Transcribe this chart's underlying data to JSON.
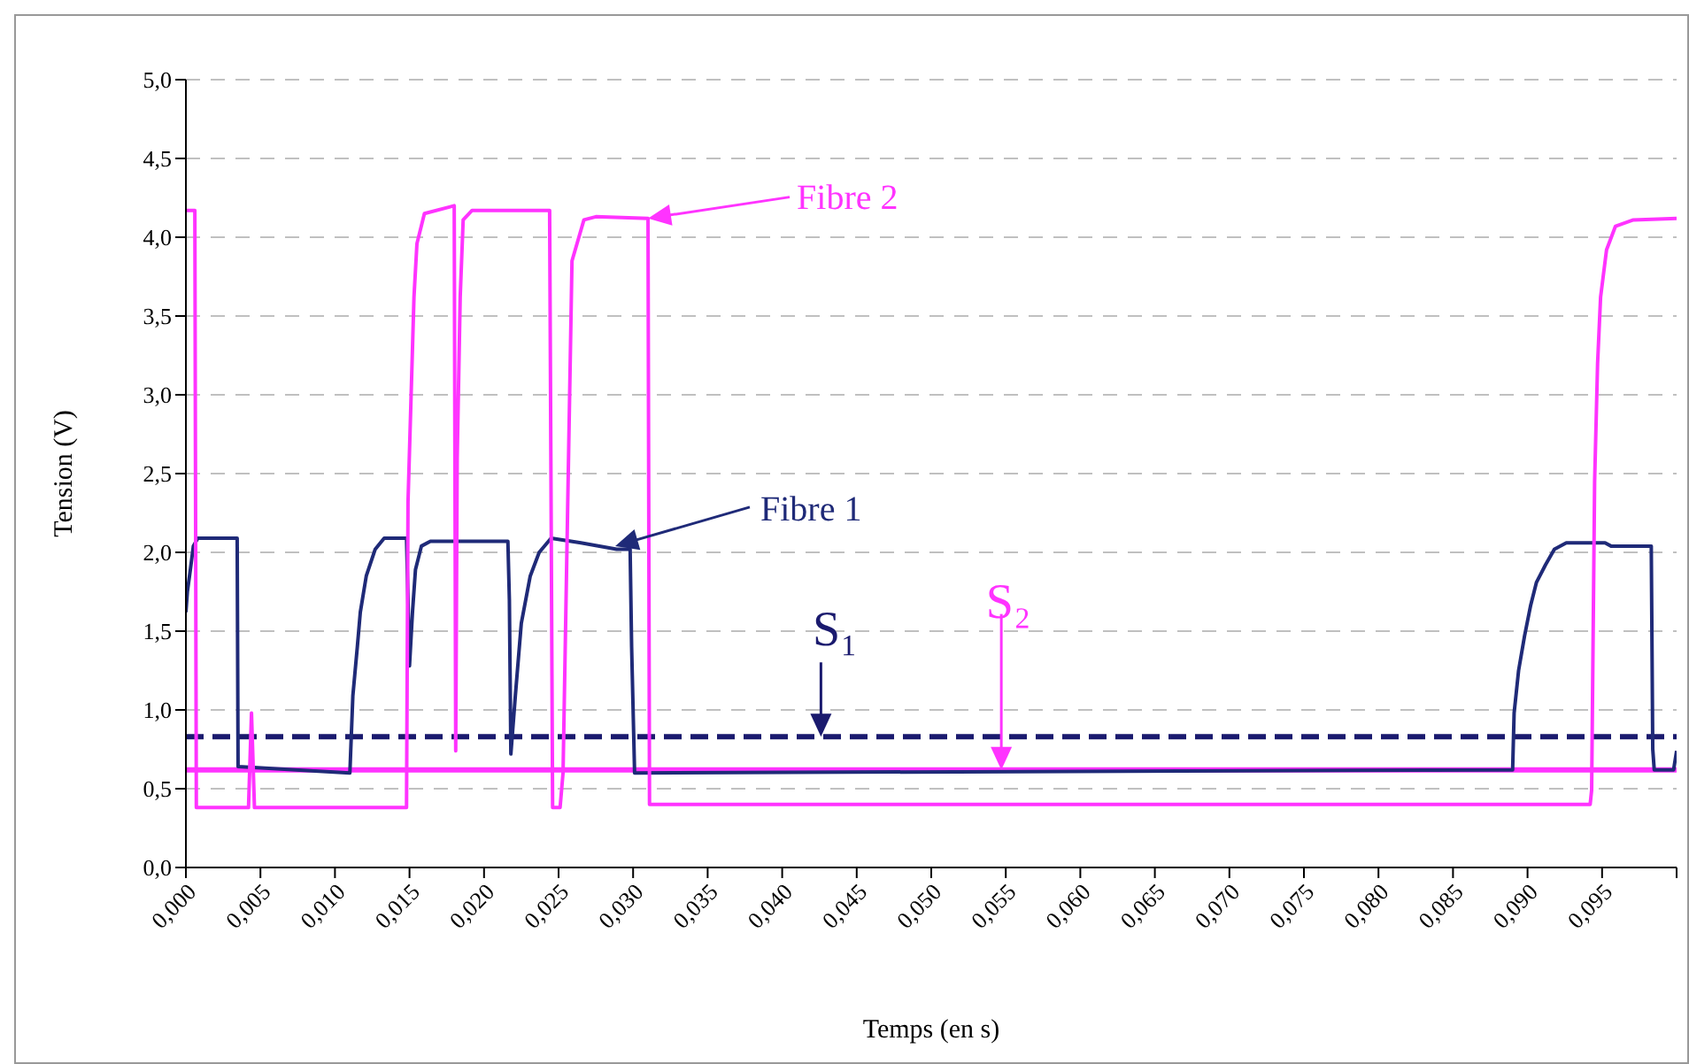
{
  "chart_data": {
    "type": "line",
    "xlabel": "Temps (en s)",
    "ylabel": "Tension (V)",
    "xlim": [
      0,
      0.1
    ],
    "xticks": [
      {
        "value": 0,
        "label": "0,000"
      },
      {
        "value": 0.005,
        "label": "0,005"
      },
      {
        "value": 0.01,
        "label": "0,010"
      },
      {
        "value": 0.015,
        "label": "0,015"
      },
      {
        "value": 0.02,
        "label": "0,020"
      },
      {
        "value": 0.025,
        "label": "0,025"
      },
      {
        "value": 0.03,
        "label": "0,030"
      },
      {
        "value": 0.035,
        "label": "0,035"
      },
      {
        "value": 0.04,
        "label": "0,040"
      },
      {
        "value": 0.045,
        "label": "0,045"
      },
      {
        "value": 0.05,
        "label": "0,050"
      },
      {
        "value": 0.055,
        "label": "0,055"
      },
      {
        "value": 0.06,
        "label": "0,060"
      },
      {
        "value": 0.065,
        "label": "0,065"
      },
      {
        "value": 0.07,
        "label": "0,070"
      },
      {
        "value": 0.075,
        "label": "0,075"
      },
      {
        "value": 0.08,
        "label": "0,080"
      },
      {
        "value": 0.085,
        "label": "0,085"
      },
      {
        "value": 0.09,
        "label": "0,090"
      },
      {
        "value": 0.095,
        "label": "0,095"
      },
      {
        "value": 0.1,
        "label": null
      }
    ],
    "ylim": [
      0,
      5
    ],
    "yticks": [
      {
        "value": 0,
        "label": "0,0"
      },
      {
        "value": 0.5,
        "label": "0,5"
      },
      {
        "value": 1,
        "label": "1,0"
      },
      {
        "value": 1.5,
        "label": "1,5"
      },
      {
        "value": 2,
        "label": "2,0"
      },
      {
        "value": 2.5,
        "label": "2,5"
      },
      {
        "value": 3,
        "label": "3,0"
      },
      {
        "value": 3.5,
        "label": "3,5"
      },
      {
        "value": 4,
        "label": "4,0"
      },
      {
        "value": 4.5,
        "label": "4,5"
      },
      {
        "value": 5,
        "label": "5,0"
      }
    ],
    "grid": "y",
    "marker": "none",
    "line_style": "solid",
    "series": [
      {
        "color": "#1f2a78",
        "x": [
          0,
          0.0001,
          0.0003,
          0.0005,
          0.0008,
          0.0032,
          0.00344,
          0.0035,
          0.011,
          0.0112,
          0.0115,
          0.0117,
          0.0121,
          0.0127,
          0.0133,
          0.0148,
          0.015,
          0.0152,
          0.0154,
          0.0158,
          0.0164,
          0.017,
          0.0216,
          0.0217,
          0.0218,
          0.0221,
          0.0225,
          0.0231,
          0.0237,
          0.0245,
          0.0265,
          0.0289,
          0.0298,
          0.0299,
          0.0301,
          0.089,
          0.0891,
          0.0894,
          0.0898,
          0.0902,
          0.0906,
          0.0912,
          0.0918,
          0.0926,
          0.0952,
          0.0956,
          0.0983,
          0.0984,
          0.0985,
          0.0998,
          0.1
        ],
        "values": [
          1.62,
          1.75,
          1.89,
          2.04,
          2.09,
          2.09,
          2.09,
          0.64,
          0.6,
          1.09,
          1.4,
          1.62,
          1.85,
          2.02,
          2.09,
          2.09,
          1.28,
          1.62,
          1.89,
          2.04,
          2.07,
          2.07,
          2.07,
          1.7,
          0.72,
          1.09,
          1.55,
          1.85,
          2.0,
          2.09,
          2.06,
          2.02,
          2.02,
          1.4,
          0.6,
          0.62,
          0.98,
          1.25,
          1.47,
          1.66,
          1.81,
          1.92,
          2.02,
          2.06,
          2.06,
          2.04,
          2.04,
          0.75,
          0.62,
          0.62,
          0.74
        ]
      },
      {
        "color": "#ff33ff",
        "x": [
          0,
          0.0006,
          0.0007,
          0.0042,
          0.0044,
          0.0046,
          0.0148,
          0.0149,
          0.0153,
          0.0155,
          0.016,
          0.018,
          0.0181,
          0.0182,
          0.0184,
          0.0186,
          0.0192,
          0.0208,
          0.0244,
          0.0246,
          0.0251,
          0.0253,
          0.0256,
          0.0259,
          0.0267,
          0.0275,
          0.031,
          0.0311,
          0.0942,
          0.0943,
          0.0945,
          0.0947,
          0.0949,
          0.0953,
          0.0959,
          0.0971,
          0.1
        ],
        "values": [
          4.17,
          4.17,
          0.38,
          0.38,
          0.98,
          0.38,
          0.38,
          2.32,
          3.62,
          3.96,
          4.15,
          4.2,
          0.74,
          2.6,
          3.62,
          4.11,
          4.17,
          4.17,
          4.17,
          0.38,
          0.38,
          0.6,
          2.23,
          3.85,
          4.11,
          4.13,
          4.12,
          0.4,
          0.4,
          0.49,
          2.45,
          3.2,
          3.62,
          3.92,
          4.07,
          4.11,
          4.12
        ]
      }
    ],
    "ref_lines": [
      {
        "axis": "y",
        "value": 0.83,
        "color": "#1a1a6e",
        "line_style": "dashed"
      },
      {
        "axis": "y",
        "value": 0.62,
        "color": "#ff33ff",
        "line_style": "solid"
      }
    ],
    "annotations": [
      {
        "text": "Fibre 2",
        "x": 0.031,
        "y": 4.12
      },
      {
        "text": "Fibre 1",
        "x": 0.0288,
        "y": 2.04
      },
      {
        "text": "S₁",
        "x": 0.0426,
        "y": 0.83
      },
      {
        "text": "S₂",
        "x": 0.0547,
        "y": 0.62
      }
    ]
  }
}
